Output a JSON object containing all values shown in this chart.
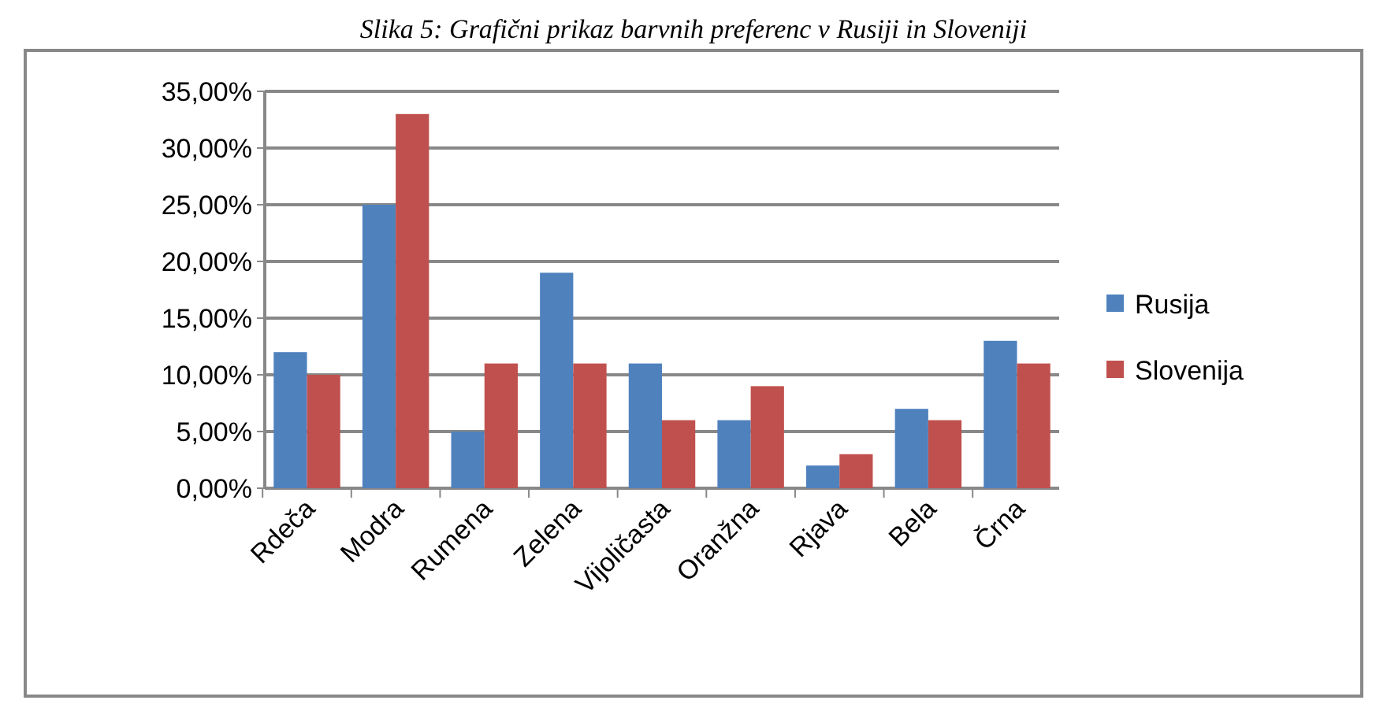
{
  "chart_data": {
    "type": "bar",
    "title": "Slika 5: Grafični prikaz barvnih preferenc v Rusiji in Sloveniji",
    "categories": [
      "Rdeča",
      "Modra",
      "Rumena",
      "Zelena",
      "Vijoličasta",
      "Oranžna",
      "Rjava",
      "Bela",
      "Črna"
    ],
    "series": [
      {
        "name": "Rusija",
        "color": "#4f81bd",
        "values": [
          12,
          25,
          5,
          19,
          11,
          6,
          2,
          7,
          13
        ]
      },
      {
        "name": "Slovenija",
        "color": "#c0504d",
        "values": [
          10,
          33,
          11,
          11,
          6,
          9,
          3,
          6,
          11
        ]
      }
    ],
    "ylim": [
      0,
      35
    ],
    "yticks": [
      {
        "value": 0,
        "label": "0,00%"
      },
      {
        "value": 5,
        "label": "5,00%"
      },
      {
        "value": 10,
        "label": "10,00%"
      },
      {
        "value": 15,
        "label": "15,00%"
      },
      {
        "value": 20,
        "label": "20,00%"
      },
      {
        "value": 25,
        "label": "25,00%"
      },
      {
        "value": 30,
        "label": "30,00%"
      },
      {
        "value": 35,
        "label": "35,00%"
      }
    ],
    "grid": "y",
    "legend": "right"
  }
}
